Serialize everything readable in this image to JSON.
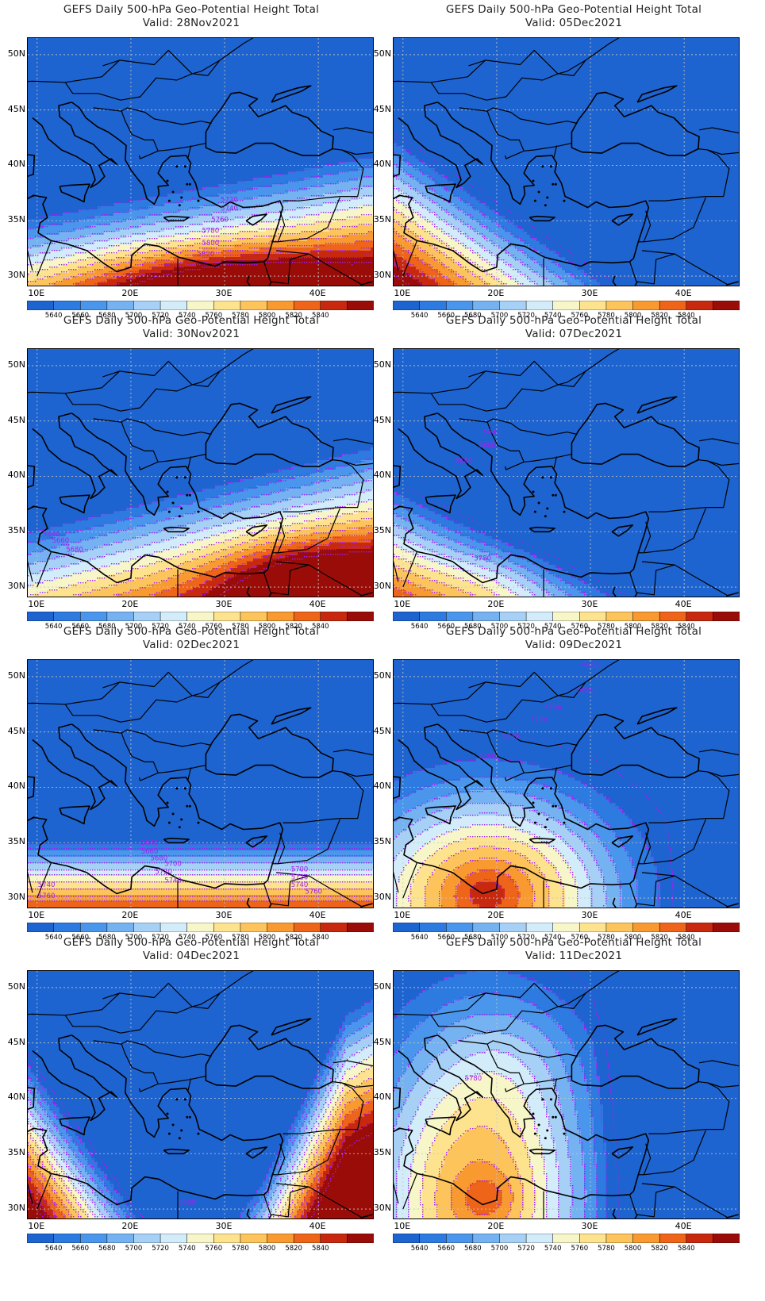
{
  "panels": [
    {
      "title": "GEFS Daily 500-hPa Geo-Potential Height Total",
      "valid": "Valid: 28Nov2021",
      "scenario": "ridge_south",
      "contour_labels": [
        "5720",
        "5740",
        "5760",
        "5780",
        "5800",
        "5820"
      ]
    },
    {
      "title": "GEFS Daily 500-hPa Geo-Potential Height Total",
      "valid": "Valid: 05Dec2021",
      "scenario": "trough_tilt_sw",
      "contour_labels": []
    },
    {
      "title": "GEFS Daily 500-hPa Geo-Potential Height Total",
      "valid": "Valid: 30Nov2021",
      "scenario": "ridge_se",
      "contour_labels": [
        "5640",
        "5660",
        "5680"
      ]
    },
    {
      "title": "GEFS Daily 500-hPa Geo-Potential Height Total",
      "valid": "Valid: 07Dec2021",
      "scenario": "ridge_sw",
      "contour_labels": [
        "5640",
        "5660",
        "5680",
        "5780"
      ]
    },
    {
      "title": "GEFS Daily 500-hPa Geo-Potential Height Total",
      "valid": "Valid: 02Dec2021",
      "scenario": "zonal_south",
      "contour_labels": [
        "5640",
        "5660",
        "5680",
        "5700",
        "5720",
        "5740",
        "5700",
        "5720",
        "5740",
        "5760",
        "5740",
        "5760"
      ]
    },
    {
      "title": "GEFS Daily 500-hPa Geo-Potential Height Total",
      "valid": "Valid: 09Dec2021",
      "scenario": "ridge_central",
      "contour_labels": [
        "5660",
        "5680",
        "5700",
        "5720",
        "5740",
        "5760"
      ]
    },
    {
      "title": "GEFS Daily 500-hPa Geo-Potential Height Total",
      "valid": "Valid: 04Dec2021",
      "scenario": "trough_u",
      "contour_labels": [
        "5680"
      ]
    },
    {
      "title": "GEFS Daily 500-hPa Geo-Potential Height Total",
      "valid": "Valid: 11Dec2021",
      "scenario": "ridge_north",
      "contour_labels": [
        "5780"
      ]
    }
  ],
  "axes": {
    "lat_labels": [
      "50N",
      "45N",
      "40N",
      "35N",
      "30N"
    ],
    "lon_labels": [
      "10E",
      "20E",
      "30E",
      "40E"
    ]
  },
  "colorbar": {
    "labels": [
      "5640",
      "5660",
      "5680",
      "5700",
      "5720",
      "5740",
      "5760",
      "5780",
      "5800",
      "5820",
      "5840"
    ],
    "colors": [
      "#1e64d0",
      "#2d7be0",
      "#4a96ec",
      "#74b2f2",
      "#a6d0f6",
      "#d2ecfa",
      "#f6f6c8",
      "#fde38e",
      "#fcc45a",
      "#f89a30",
      "#ee6418",
      "#c8280e",
      "#9a0c08"
    ]
  },
  "contour_color": "#a020f0",
  "coast_color": "#000000"
}
